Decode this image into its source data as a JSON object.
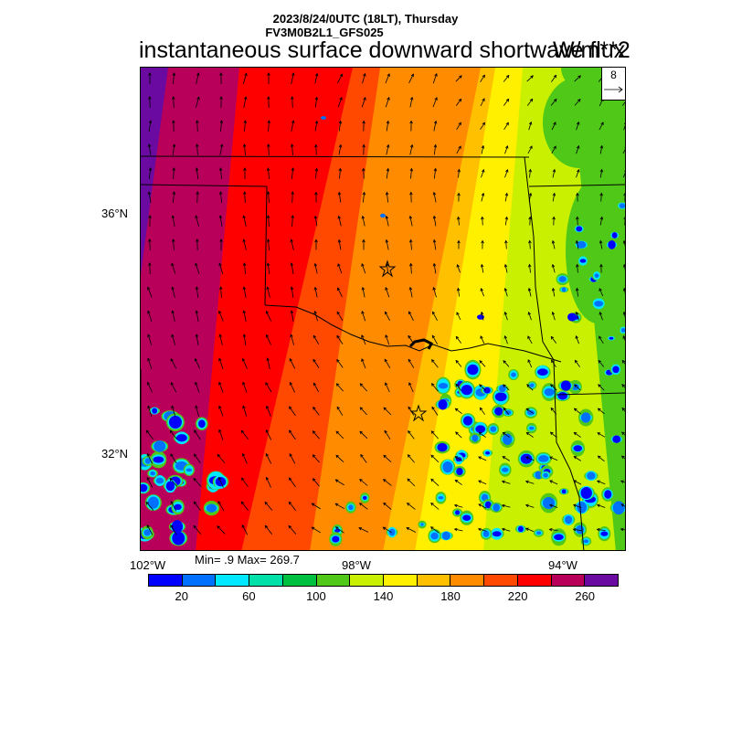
{
  "header": {
    "date_line": "2023/8/24/0UTC (18LT), Thursday",
    "model_line": "FV3M0B2L1_GFS025",
    "variable_title": "instantaneous surface downward shortwave flux",
    "units": "W/m**2"
  },
  "reference_vector": {
    "value": "8"
  },
  "axes": {
    "lat_labels": [
      "36°N",
      "32°N"
    ],
    "lon_labels": [
      "102°W",
      "98°W",
      "94°W"
    ]
  },
  "stats": {
    "min_max_text": "Min= .9 Max= 269.7"
  },
  "colorbar": {
    "colors": [
      "#0000ff",
      "#0070ff",
      "#00e8ff",
      "#00e0a8",
      "#00c040",
      "#50c818",
      "#c8f000",
      "#fff000",
      "#ffc000",
      "#ff8c00",
      "#ff4800",
      "#ff0000",
      "#b8005a",
      "#6a0aa0"
    ],
    "labels": [
      "20",
      "60",
      "100",
      "140",
      "180",
      "220",
      "260"
    ]
  },
  "map": {
    "markers": [
      "star",
      "star"
    ],
    "colors": {
      "purple": "#6a0aa0",
      "magenta": "#b8005a",
      "red": "#ff0000",
      "red_orange": "#ff4800",
      "orange": "#ff8c00",
      "gold": "#ffc000",
      "yellow": "#fff000",
      "yellow_green": "#c8f000",
      "green": "#50c818",
      "blue": "#0000ff",
      "light_blue": "#0070ff",
      "cyan": "#00e8ff",
      "teal": "#00e0a8"
    }
  }
}
